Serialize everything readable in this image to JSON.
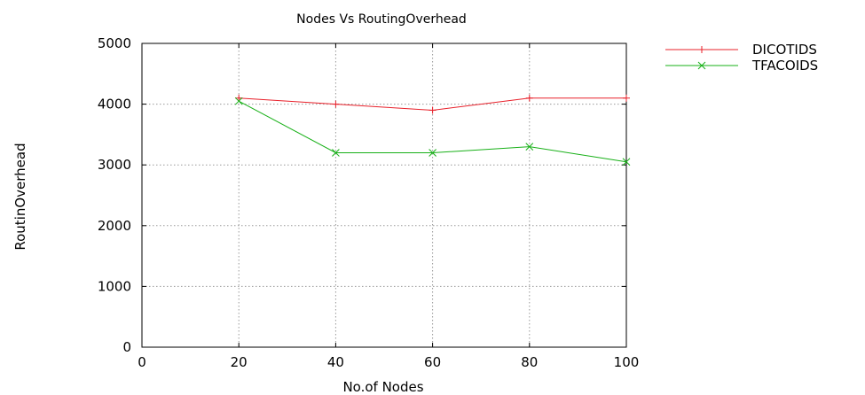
{
  "chart_data": {
    "type": "line",
    "title": "Nodes Vs RoutingOverhead",
    "xlabel": "No.of Nodes",
    "ylabel": "RoutinOverhead",
    "xlim": [
      0,
      100
    ],
    "ylim": [
      0,
      5000
    ],
    "xticks": [
      0,
      20,
      40,
      60,
      80,
      100
    ],
    "yticks": [
      0,
      1000,
      2000,
      3000,
      4000,
      5000
    ],
    "grid": true,
    "legend_position": "top-right outside",
    "series": [
      {
        "name": "DICOTIDS",
        "color": "#e8202a",
        "marker": "plus",
        "x": [
          20,
          40,
          60,
          80,
          100
        ],
        "y": [
          4100,
          4000,
          3900,
          4100,
          4100
        ]
      },
      {
        "name": "TFACOIDS",
        "color": "#17b017",
        "marker": "x",
        "x": [
          20,
          40,
          60,
          80,
          100
        ],
        "y": [
          4050,
          3200,
          3200,
          3300,
          3050
        ]
      }
    ]
  }
}
